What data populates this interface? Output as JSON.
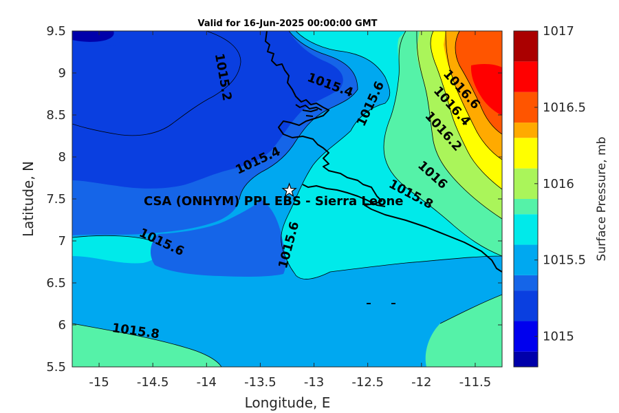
{
  "title": "Valid for 16-Jun-2025 00:00:00 GMT",
  "site_label": "CSA (ONHYM) PPL EBS  - Sierra Leone",
  "colorbar": {
    "label": "Surface Pressure, mb",
    "ticks": [
      "1015",
      "1015.5",
      "1016",
      "1016.5",
      "1017"
    ],
    "levels": [
      {
        "from": 1014.8,
        "to": 1014.9,
        "color": "#0000aa"
      },
      {
        "from": 1014.9,
        "to": 1015.1,
        "color": "#0000ee"
      },
      {
        "from": 1015.1,
        "to": 1015.3,
        "color": "#0a3fe0"
      },
      {
        "from": 1015.3,
        "to": 1015.4,
        "color": "#1565e8"
      },
      {
        "from": 1015.4,
        "to": 1015.6,
        "color": "#00a8f0"
      },
      {
        "from": 1015.6,
        "to": 1015.8,
        "color": "#00eaea"
      },
      {
        "from": 1015.8,
        "to": 1015.9,
        "color": "#55f2a8"
      },
      {
        "from": 1015.9,
        "to": 1016.1,
        "color": "#aaf55a"
      },
      {
        "from": 1016.1,
        "to": 1016.3,
        "color": "#ffff00"
      },
      {
        "from": 1016.3,
        "to": 1016.4,
        "color": "#ffaa00"
      },
      {
        "from": 1016.4,
        "to": 1016.6,
        "color": "#ff5500"
      },
      {
        "from": 1016.6,
        "to": 1016.8,
        "color": "#ff0000"
      },
      {
        "from": 1016.8,
        "to": 1017.0,
        "color": "#aa0000"
      }
    ],
    "range": [
      1014.8,
      1017.0
    ]
  },
  "chart_data": {
    "type": "contour-map",
    "xlabel": "Longitude, E",
    "ylabel": "Latitude, N",
    "xlim": [
      -15.25,
      -11.25
    ],
    "ylim": [
      5.5,
      9.5
    ],
    "xticks": [
      "-15",
      "-14.5",
      "-14",
      "-13.5",
      "-13",
      "-12.5",
      "-12",
      "-11.5"
    ],
    "xtick_values": [
      -15,
      -14.5,
      -14,
      -13.5,
      -13,
      -12.5,
      -12,
      -11.5
    ],
    "yticks": [
      "5.5",
      "6",
      "6.5",
      "7",
      "7.5",
      "8",
      "8.5",
      "9",
      "9.5"
    ],
    "ytick_values": [
      5.5,
      6,
      6.5,
      7,
      7.5,
      8,
      8.5,
      9,
      9.5
    ],
    "site": {
      "lon": -13.23,
      "lat": 7.6
    },
    "contour_labels": [
      {
        "text": "1015.2",
        "lon": -13.85,
        "lat": 8.95,
        "angle": 80
      },
      {
        "text": "1015.4",
        "lon": -12.85,
        "lat": 8.85,
        "angle": 20
      },
      {
        "text": "1015.6",
        "lon": -12.47,
        "lat": 8.63,
        "angle": -65
      },
      {
        "text": "1015.4",
        "lon": -13.52,
        "lat": 7.95,
        "angle": -25
      },
      {
        "text": "1016.6",
        "lon": -11.63,
        "lat": 8.8,
        "angle": 48
      },
      {
        "text": "1016.4",
        "lon": -11.72,
        "lat": 8.6,
        "angle": 48
      },
      {
        "text": "1016.2",
        "lon": -11.8,
        "lat": 8.3,
        "angle": 48
      },
      {
        "text": "1016",
        "lon": -11.9,
        "lat": 7.78,
        "angle": 42
      },
      {
        "text": "1015.8",
        "lon": -12.1,
        "lat": 7.55,
        "angle": 28
      },
      {
        "text": "1015.6",
        "lon": -14.42,
        "lat": 6.98,
        "angle": 25
      },
      {
        "text": "1015.6",
        "lon": -13.23,
        "lat": 6.95,
        "angle": -75
      },
      {
        "text": "1015.8",
        "lon": -14.66,
        "lat": 5.92,
        "angle": 8
      }
    ]
  }
}
